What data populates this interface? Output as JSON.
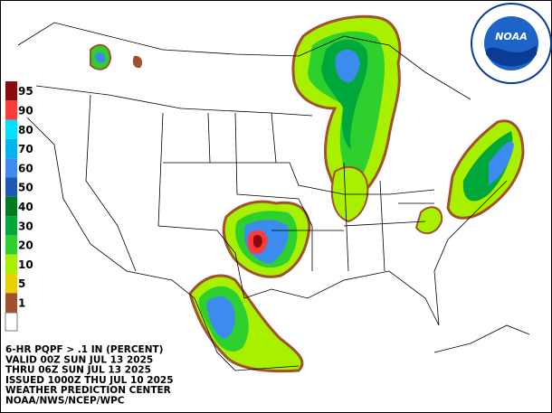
{
  "legend": [
    {
      "label": "95",
      "color": "#8b0a0a"
    },
    {
      "label": "90",
      "color": "#ff3a3a"
    },
    {
      "label": "80",
      "color": "#00e0ff"
    },
    {
      "label": "70",
      "color": "#00b4f0"
    },
    {
      "label": "60",
      "color": "#3c8cf0"
    },
    {
      "label": "50",
      "color": "#1e5ab4"
    },
    {
      "label": "40",
      "color": "#007a1e"
    },
    {
      "label": "30",
      "color": "#00a83c"
    },
    {
      "label": "20",
      "color": "#2ed02e"
    },
    {
      "label": "10",
      "color": "#a8f000"
    },
    {
      "label": "5",
      "color": "#e6d200"
    },
    {
      "label": "1",
      "color": "#a0522d"
    }
  ],
  "logo": "NOAA",
  "caption": [
    "6-HR PQPF > .1 IN (PERCENT)",
    "VALID 00Z SUN JUL 13 2025",
    "THRU 06Z SUN JUL 13 2025",
    "ISSUED 1000Z THU JUL 10 2025",
    "WEATHER PREDICTION CENTER",
    "NOAA/NWS/NCEP/WPC"
  ]
}
